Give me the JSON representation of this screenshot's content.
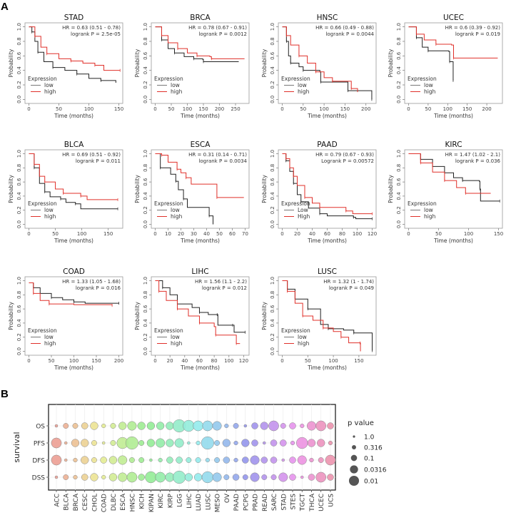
{
  "panel_labels": {
    "a": "A",
    "b": "B"
  },
  "km_common": {
    "ylabel": "Probability",
    "xlabel": "Time (months)",
    "legend_title": "Expression",
    "yticks": [
      "0.0",
      "0.2",
      "0.4",
      "0.6",
      "0.8",
      "1.0"
    ],
    "colors": {
      "low": "#222222",
      "high": "#e0302a",
      "low_legend": "#777777"
    }
  },
  "chart_data": [
    {
      "type": "line",
      "title": "STAD",
      "hr": "HR = 0.63 (0.51 - 0.78)",
      "logrank": "logrank P = 2.5e-05",
      "legend": [
        "low",
        "high"
      ],
      "xlim": [
        0,
        150
      ],
      "xticks": [
        0,
        50,
        100,
        150
      ],
      "low": [
        [
          0,
          1
        ],
        [
          5,
          0.93
        ],
        [
          10,
          0.8
        ],
        [
          15,
          0.65
        ],
        [
          25,
          0.52
        ],
        [
          40,
          0.44
        ],
        [
          60,
          0.4
        ],
        [
          80,
          0.35
        ],
        [
          100,
          0.29
        ],
        [
          120,
          0.26
        ],
        [
          145,
          0.23
        ]
      ],
      "high": [
        [
          0,
          1
        ],
        [
          10,
          0.87
        ],
        [
          20,
          0.72
        ],
        [
          30,
          0.63
        ],
        [
          50,
          0.56
        ],
        [
          70,
          0.53
        ],
        [
          90,
          0.5
        ],
        [
          110,
          0.47
        ],
        [
          125,
          0.4
        ],
        [
          152,
          0.4
        ]
      ]
    },
    {
      "type": "line",
      "title": "BRCA",
      "hr": "HR = 0.78 (0.67 - 0.91)",
      "logrank": "logrank P = 0.0012",
      "legend": [
        "low",
        "high"
      ],
      "xlim": [
        0,
        280
      ],
      "xticks": [
        0,
        50,
        100,
        150,
        200,
        250
      ],
      "low": [
        [
          0,
          1
        ],
        [
          20,
          0.82
        ],
        [
          40,
          0.7
        ],
        [
          60,
          0.64
        ],
        [
          90,
          0.59
        ],
        [
          120,
          0.56
        ],
        [
          148,
          0.55
        ],
        [
          150,
          0.52
        ],
        [
          260,
          0.52
        ]
      ],
      "high": [
        [
          0,
          1
        ],
        [
          20,
          0.88
        ],
        [
          40,
          0.78
        ],
        [
          70,
          0.7
        ],
        [
          100,
          0.64
        ],
        [
          130,
          0.6
        ],
        [
          170,
          0.59
        ],
        [
          175,
          0.56
        ],
        [
          278,
          0.56
        ]
      ]
    },
    {
      "type": "line",
      "title": "HNSC",
      "hr": "HR = 0.66 (0.49 - 0.88)",
      "logrank": "logrank P = 0.0044",
      "legend": [
        "low",
        "high"
      ],
      "xlim": [
        0,
        215
      ],
      "xticks": [
        0,
        50,
        100,
        150,
        200
      ],
      "low": [
        [
          0,
          1
        ],
        [
          10,
          0.8
        ],
        [
          15,
          0.6
        ],
        [
          20,
          0.5
        ],
        [
          40,
          0.45
        ],
        [
          50,
          0.4
        ],
        [
          90,
          0.38
        ],
        [
          92,
          0.24
        ],
        [
          155,
          0.24
        ],
        [
          157,
          0.12
        ],
        [
          213,
          0.12
        ],
        [
          214,
          0
        ]
      ],
      "high": [
        [
          0,
          1
        ],
        [
          10,
          0.88
        ],
        [
          20,
          0.75
        ],
        [
          40,
          0.6
        ],
        [
          60,
          0.5
        ],
        [
          80,
          0.38
        ],
        [
          100,
          0.3
        ],
        [
          120,
          0.25
        ],
        [
          155,
          0.25
        ],
        [
          165,
          0.15
        ],
        [
          180,
          0.1
        ]
      ]
    },
    {
      "type": "line",
      "title": "UCEC",
      "hr": "HR = 0.6 (0.39 - 0.92)",
      "logrank": "logrank P = 0.019",
      "legend": [
        "low",
        "high"
      ],
      "xlim": [
        0,
        230
      ],
      "xticks": [
        0,
        50,
        100,
        150,
        200
      ],
      "low": [
        [
          0,
          1
        ],
        [
          20,
          0.85
        ],
        [
          35,
          0.72
        ],
        [
          50,
          0.67
        ],
        [
          103,
          0.66
        ],
        [
          105,
          0.52
        ],
        [
          112,
          0.52
        ],
        [
          114,
          0.26
        ]
      ],
      "high": [
        [
          0,
          1
        ],
        [
          20,
          0.9
        ],
        [
          40,
          0.82
        ],
        [
          70,
          0.76
        ],
        [
          110,
          0.75
        ],
        [
          115,
          0.57
        ],
        [
          228,
          0.57
        ]
      ]
    },
    {
      "type": "line",
      "title": "BLCA",
      "hr": "HR = 0.69 (0.51 - 0.92)",
      "logrank": "logrank P = 0.011",
      "legend": [
        "low",
        "high"
      ],
      "xlim": [
        0,
        170
      ],
      "xticks": [
        0,
        50,
        100,
        150
      ],
      "low": [
        [
          0,
          1
        ],
        [
          10,
          0.8
        ],
        [
          20,
          0.58
        ],
        [
          30,
          0.46
        ],
        [
          40,
          0.39
        ],
        [
          60,
          0.36
        ],
        [
          70,
          0.31
        ],
        [
          88,
          0.29
        ],
        [
          98,
          0.22
        ],
        [
          168,
          0.22
        ]
      ],
      "high": [
        [
          0,
          1
        ],
        [
          10,
          0.85
        ],
        [
          20,
          0.68
        ],
        [
          30,
          0.6
        ],
        [
          50,
          0.5
        ],
        [
          65,
          0.44
        ],
        [
          95,
          0.44
        ],
        [
          98,
          0.4
        ],
        [
          110,
          0.35
        ],
        [
          168,
          0.35
        ]
      ]
    },
    {
      "type": "line",
      "title": "ESCA",
      "hr": "HR = 0.31 (0.14 - 0.71)",
      "logrank": "logrank P = 0.0034",
      "legend": [
        "low",
        "high"
      ],
      "xlim": [
        0,
        70
      ],
      "xticks": [
        0,
        10,
        20,
        30,
        40,
        50,
        60,
        70
      ],
      "low": [
        [
          0,
          1
        ],
        [
          4,
          0.8
        ],
        [
          12,
          0.71
        ],
        [
          16,
          0.61
        ],
        [
          18,
          0.49
        ],
        [
          22,
          0.36
        ],
        [
          25,
          0.24
        ],
        [
          42,
          0.12
        ],
        [
          45,
          0
        ]
      ],
      "high": [
        [
          0,
          1
        ],
        [
          5,
          0.98
        ],
        [
          10,
          0.88
        ],
        [
          17,
          0.78
        ],
        [
          20,
          0.73
        ],
        [
          24,
          0.66
        ],
        [
          28,
          0.57
        ],
        [
          48,
          0.38
        ],
        [
          69,
          0.38
        ]
      ]
    },
    {
      "type": "line",
      "title": "PAAD",
      "hr": "HR = 0.79 (0.67 - 0.93)",
      "logrank": "Logrank P = 0.00572",
      "legend": [
        "Low",
        "High"
      ],
      "xlim": [
        0,
        120
      ],
      "xticks": [
        0,
        20,
        40,
        60,
        80,
        100,
        120
      ],
      "low": [
        [
          0,
          1
        ],
        [
          5,
          0.9
        ],
        [
          10,
          0.75
        ],
        [
          15,
          0.58
        ],
        [
          20,
          0.42
        ],
        [
          25,
          0.32
        ],
        [
          35,
          0.23
        ],
        [
          50,
          0.15
        ],
        [
          60,
          0.12
        ],
        [
          95,
          0.1
        ],
        [
          98,
          0.08
        ],
        [
          120,
          0.08
        ]
      ],
      "high": [
        [
          0,
          1
        ],
        [
          5,
          0.93
        ],
        [
          10,
          0.8
        ],
        [
          15,
          0.68
        ],
        [
          20,
          0.55
        ],
        [
          30,
          0.38
        ],
        [
          40,
          0.3
        ],
        [
          50,
          0.24
        ],
        [
          75,
          0.24
        ],
        [
          85,
          0.19
        ],
        [
          94,
          0.15
        ],
        [
          120,
          0.15
        ]
      ]
    },
    {
      "type": "line",
      "title": "KIRC",
      "hr": "HR = 1.47 (1.02 - 2.1)",
      "logrank": "logrank P = 0.036",
      "legend": [
        "low",
        "high"
      ],
      "xlim": [
        0,
        150
      ],
      "xticks": [
        0,
        50,
        100,
        150
      ],
      "low": [
        [
          0,
          1
        ],
        [
          20,
          0.92
        ],
        [
          40,
          0.82
        ],
        [
          60,
          0.73
        ],
        [
          75,
          0.66
        ],
        [
          90,
          0.62
        ],
        [
          118,
          0.61
        ],
        [
          119,
          0.5
        ],
        [
          120,
          0.33
        ],
        [
          152,
          0.33
        ]
      ],
      "high": [
        [
          0,
          1
        ],
        [
          20,
          0.87
        ],
        [
          40,
          0.74
        ],
        [
          60,
          0.62
        ],
        [
          80,
          0.52
        ],
        [
          95,
          0.44
        ],
        [
          137,
          0.44
        ]
      ]
    },
    {
      "type": "line",
      "title": "COAD",
      "hr": "HR = 1.33 (1.05 - 1.68)",
      "logrank": "logrank P = 0.016",
      "legend": [
        "low",
        "high"
      ],
      "xlim": [
        0,
        200
      ],
      "xticks": [
        0,
        50,
        100,
        150,
        200
      ],
      "low": [
        [
          0,
          0.97
        ],
        [
          10,
          0.9
        ],
        [
          25,
          0.82
        ],
        [
          50,
          0.76
        ],
        [
          75,
          0.73
        ],
        [
          100,
          0.7
        ],
        [
          125,
          0.68
        ],
        [
          200,
          0.68
        ]
      ],
      "high": [
        [
          0,
          0.97
        ],
        [
          10,
          0.82
        ],
        [
          25,
          0.72
        ],
        [
          45,
          0.67
        ],
        [
          100,
          0.66
        ],
        [
          185,
          0.65
        ]
      ]
    },
    {
      "type": "line",
      "title": "LIHC",
      "hr": "HR = 1.56 (1.1 - 2.2)",
      "logrank": "logrank P = 0.012",
      "legend": [
        "low",
        "high"
      ],
      "xlim": [
        0,
        122
      ],
      "xticks": [
        0,
        20,
        40,
        60,
        80,
        100,
        120
      ],
      "low": [
        [
          0,
          1
        ],
        [
          10,
          0.9
        ],
        [
          20,
          0.8
        ],
        [
          30,
          0.67
        ],
        [
          50,
          0.62
        ],
        [
          60,
          0.55
        ],
        [
          72,
          0.52
        ],
        [
          84,
          0.52
        ],
        [
          85,
          0.37
        ],
        [
          105,
          0.37
        ],
        [
          107,
          0.27
        ],
        [
          122,
          0.27
        ]
      ],
      "high": [
        [
          0,
          1
        ],
        [
          5,
          0.85
        ],
        [
          15,
          0.72
        ],
        [
          30,
          0.6
        ],
        [
          45,
          0.5
        ],
        [
          60,
          0.4
        ],
        [
          80,
          0.35
        ],
        [
          82,
          0.23
        ],
        [
          108,
          0.23
        ],
        [
          110,
          0.11
        ],
        [
          115,
          0.11
        ]
      ]
    },
    {
      "type": "line",
      "title": "LUSC",
      "hr": "HR = 1.32 (1 - 1.74)",
      "logrank": "logrank P = 0.049",
      "legend": [
        "low",
        "high"
      ],
      "xlim": [
        0,
        176
      ],
      "xticks": [
        0,
        50,
        100,
        150
      ],
      "low": [
        [
          0,
          1
        ],
        [
          10,
          0.88
        ],
        [
          25,
          0.74
        ],
        [
          50,
          0.6
        ],
        [
          75,
          0.38
        ],
        [
          90,
          0.32
        ],
        [
          120,
          0.3
        ],
        [
          140,
          0.26
        ],
        [
          175,
          0.26
        ],
        [
          176,
          0.01
        ]
      ],
      "high": [
        [
          0,
          1
        ],
        [
          10,
          0.85
        ],
        [
          25,
          0.68
        ],
        [
          40,
          0.5
        ],
        [
          60,
          0.44
        ],
        [
          80,
          0.33
        ],
        [
          100,
          0.28
        ],
        [
          115,
          0.2
        ],
        [
          130,
          0.12
        ],
        [
          152,
          0.12
        ],
        [
          153,
          0
        ]
      ]
    },
    {
      "type": "scatter",
      "subtype": "bubble",
      "ylabel": "survival",
      "rows": [
        "OS",
        "PFS",
        "DFS",
        "DSS"
      ],
      "categories": [
        "ACC",
        "BLCA",
        "BRCA",
        "CESC",
        "CHOL",
        "COAD",
        "DLBC",
        "ESCA",
        "HNSC",
        "KICH",
        "KIPAN",
        "KIRC",
        "KIRP",
        "LGG",
        "LIHC",
        "LUAD",
        "LUSC",
        "MESO",
        "OV",
        "PAAD",
        "PCPG",
        "PRAD",
        "READ",
        "SARC",
        "STAD",
        "STES",
        "TGCT",
        "THCA",
        "UCEC",
        "UCS"
      ],
      "pvalues": {
        "OS": [
          1.0,
          0.316,
          0.316,
          0.18,
          0.1,
          0.56,
          0.316,
          0.1,
          0.056,
          0.1,
          0.1,
          0.1,
          0.1,
          0.01,
          0.018,
          0.0316,
          0.0316,
          0.056,
          0.56,
          0.316,
          1.0,
          0.18,
          0.1,
          0.0316,
          0.316,
          0.18,
          0.56,
          0.056,
          0.0316,
          0.18
        ],
        "PFS": [
          0.0316,
          1.0,
          0.1,
          0.1,
          0.316,
          1.0,
          0.316,
          0.018,
          0.01,
          0.316,
          0.1,
          0.056,
          0.1,
          0.056,
          1.0,
          0.56,
          0.01,
          0.316,
          0.1,
          0.56,
          0.1,
          0.18,
          1.0,
          0.18,
          0.18,
          0.56,
          0.018,
          0.1,
          0.1,
          0.56
        ],
        "DFS": [
          0.0316,
          1.0,
          0.56,
          0.1,
          0.316,
          0.18,
          0.1,
          0.056,
          0.316,
          0.316,
          1.0,
          0.56,
          0.18,
          0.18,
          0.316,
          0.316,
          0.56,
          0.316,
          0.18,
          0.56,
          0.18,
          0.056,
          0.18,
          0.18,
          1.0,
          0.18,
          0.056,
          0.56,
          0.316,
          0.0316
        ],
        "DSS": [
          1.0,
          0.316,
          0.56,
          0.18,
          0.1,
          0.56,
          0.1,
          0.056,
          0.0316,
          0.18,
          0.018,
          0.0316,
          0.056,
          0.01,
          0.1,
          0.1,
          0.018,
          0.056,
          0.316,
          0.18,
          0.316,
          0.056,
          0.316,
          0.316,
          0.056,
          0.18,
          1.0,
          0.18,
          0.0316,
          0.18
        ]
      },
      "legend": {
        "title": "p value",
        "entries": [
          "1.0",
          "0.316",
          "0.1",
          "0.0316",
          "0.01"
        ],
        "placement": "right"
      },
      "grid": true
    }
  ]
}
